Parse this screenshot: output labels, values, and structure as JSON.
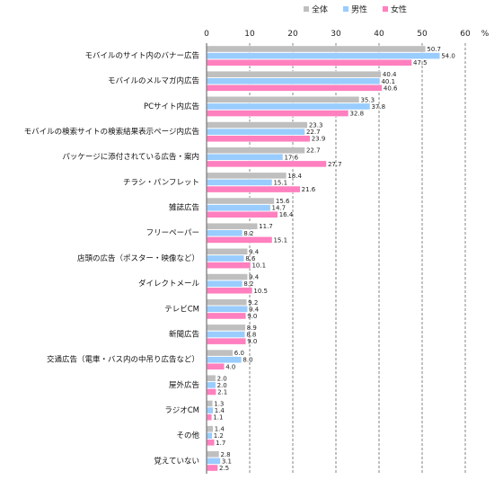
{
  "chart_data": {
    "type": "bar",
    "orientation": "horizontal",
    "unit": "%",
    "xlim": [
      0,
      60
    ],
    "xticks": [
      0,
      10,
      20,
      30,
      40,
      50,
      60
    ],
    "grid": "vertical dashed",
    "legend_position": "top-right",
    "categories": [
      "モバイルのサイト内のバナー広告",
      "モバイルのメルマガ内広告",
      "PCサイト内広告",
      "モバイルの検索サイトの検索結果表示ページ内広告",
      "パッケージに添付されている広告・案内",
      "チラシ・パンフレット",
      "雑誌広告",
      "フリーペーパー",
      "店頭の広告（ポスター・映像など）",
      "ダイレクトメール",
      "テレビCM",
      "新聞広告",
      "交通広告（電車・バス内の中吊り広告など）",
      "屋外広告",
      "ラジオCM",
      "その他",
      "覚えていない"
    ],
    "series": [
      {
        "name": "全体",
        "color": "#bfbfbf",
        "values": [
          50.7,
          40.4,
          35.3,
          23.3,
          22.7,
          18.4,
          15.6,
          11.7,
          9.4,
          9.4,
          9.2,
          8.9,
          6.0,
          2.0,
          1.3,
          1.4,
          2.8
        ]
      },
      {
        "name": "男性",
        "color": "#99ccff",
        "values": [
          54.0,
          40.1,
          37.8,
          22.7,
          17.6,
          15.1,
          14.7,
          8.2,
          8.6,
          8.2,
          9.4,
          8.8,
          8.0,
          2.0,
          1.4,
          1.2,
          3.1
        ]
      },
      {
        "name": "女性",
        "color": "#ff7fbf",
        "values": [
          47.5,
          40.6,
          32.8,
          23.9,
          27.7,
          21.6,
          16.4,
          15.1,
          10.1,
          10.5,
          9.0,
          9.0,
          4.0,
          2.1,
          1.1,
          1.7,
          2.5
        ]
      }
    ]
  }
}
